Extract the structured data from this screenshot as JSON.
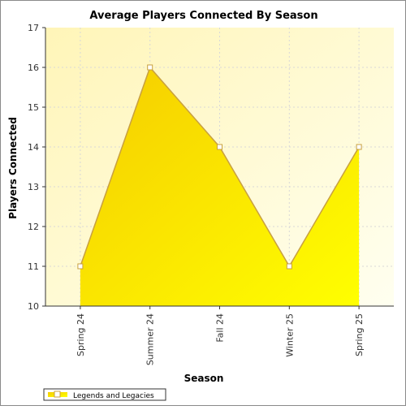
{
  "chart_data": {
    "type": "area",
    "title": "Average Players Connected By Season",
    "xlabel": "Season",
    "ylabel": "Players Connected",
    "categories": [
      "Spring 24",
      "Summer 24",
      "Fall 24",
      "Winter 25",
      "Spring 25"
    ],
    "series": [
      {
        "name": "Legends and Legacies",
        "values": [
          11,
          16,
          14,
          11,
          14
        ]
      }
    ],
    "ylim": [
      10,
      17
    ],
    "yticks": [
      10,
      11,
      12,
      13,
      14,
      15,
      16,
      17
    ],
    "grid": true,
    "legend_position": "bottom-left",
    "colors": {
      "fill_start": "#f5cc00",
      "fill_end": "#ffff00",
      "line": "#c8a040",
      "plot_bg_start": "#fff5b8",
      "plot_bg_end": "#fffff0",
      "grid": "#d8d8d8"
    }
  }
}
